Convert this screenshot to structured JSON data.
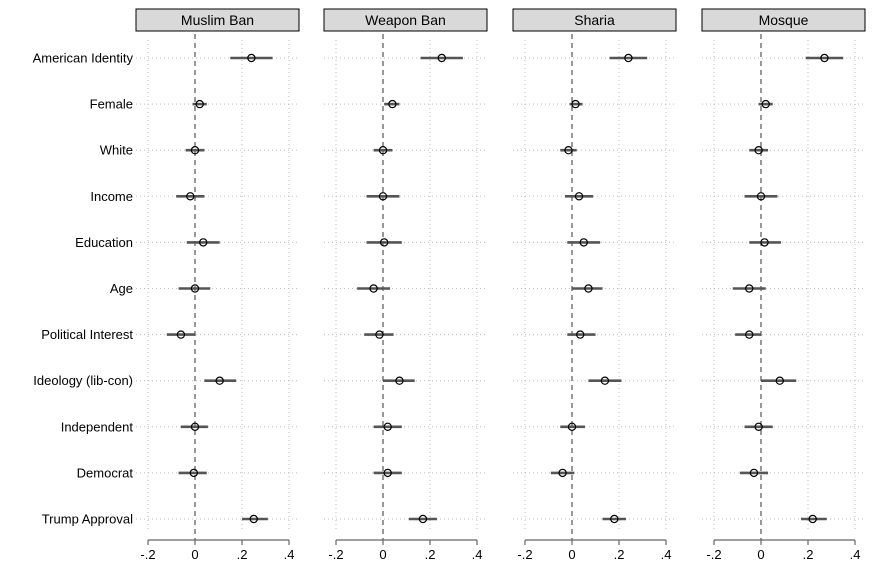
{
  "chart_data": {
    "type": "coefficient-plot",
    "panels": [
      "Muslim Ban",
      "Weapon Ban",
      "Sharia",
      "Mosque"
    ],
    "variables": [
      "American Identity",
      "Female",
      "White",
      "Income",
      "Education",
      "Age",
      "Political Interest",
      "Ideology (lib-con)",
      "Independent",
      "Democrat",
      "Trump Approval"
    ],
    "xlim": [
      -0.2,
      0.4
    ],
    "xticks": [
      -0.2,
      0,
      0.2,
      0.4
    ],
    "xtick_labels": [
      "-.2",
      "0",
      ".2",
      ".4"
    ],
    "grid": true,
    "reference_line": 0,
    "series": [
      {
        "panel": "Muslim Ban",
        "estimates": [
          0.24,
          0.02,
          0.0,
          -0.02,
          0.035,
          0.0,
          -0.06,
          0.105,
          0.0,
          -0.005,
          0.25
        ],
        "ci_low": [
          0.15,
          -0.01,
          -0.04,
          -0.08,
          -0.035,
          -0.07,
          -0.12,
          0.04,
          -0.06,
          -0.07,
          0.2
        ],
        "ci_high": [
          0.33,
          0.05,
          0.04,
          0.04,
          0.105,
          0.065,
          0.0,
          0.175,
          0.055,
          0.05,
          0.31
        ]
      },
      {
        "panel": "Weapon Ban",
        "estimates": [
          0.25,
          0.04,
          0.0,
          0.0,
          0.005,
          -0.04,
          -0.015,
          0.07,
          0.02,
          0.02,
          0.17
        ],
        "ci_low": [
          0.16,
          0.005,
          -0.04,
          -0.07,
          -0.07,
          -0.11,
          -0.08,
          0.0,
          -0.04,
          -0.04,
          0.11
        ],
        "ci_high": [
          0.34,
          0.07,
          0.04,
          0.07,
          0.08,
          0.03,
          0.045,
          0.135,
          0.08,
          0.08,
          0.23
        ]
      },
      {
        "panel": "Sharia",
        "estimates": [
          0.24,
          0.015,
          -0.015,
          0.03,
          0.05,
          0.07,
          0.035,
          0.14,
          0.0,
          -0.04,
          0.18
        ],
        "ci_low": [
          0.16,
          -0.01,
          -0.05,
          -0.03,
          -0.02,
          0.0,
          -0.02,
          0.07,
          -0.05,
          -0.09,
          0.13
        ],
        "ci_high": [
          0.32,
          0.045,
          0.02,
          0.09,
          0.12,
          0.13,
          0.1,
          0.21,
          0.055,
          0.01,
          0.23
        ]
      },
      {
        "panel": "Mosque",
        "estimates": [
          0.27,
          0.02,
          -0.01,
          0.0,
          0.015,
          -0.05,
          -0.05,
          0.08,
          -0.01,
          -0.03,
          0.22
        ],
        "ci_low": [
          0.19,
          -0.01,
          -0.05,
          -0.07,
          -0.05,
          -0.12,
          -0.11,
          0.0,
          -0.07,
          -0.09,
          0.17
        ],
        "ci_high": [
          0.35,
          0.05,
          0.03,
          0.07,
          0.085,
          0.02,
          0.0,
          0.15,
          0.05,
          0.03,
          0.28
        ]
      }
    ]
  }
}
